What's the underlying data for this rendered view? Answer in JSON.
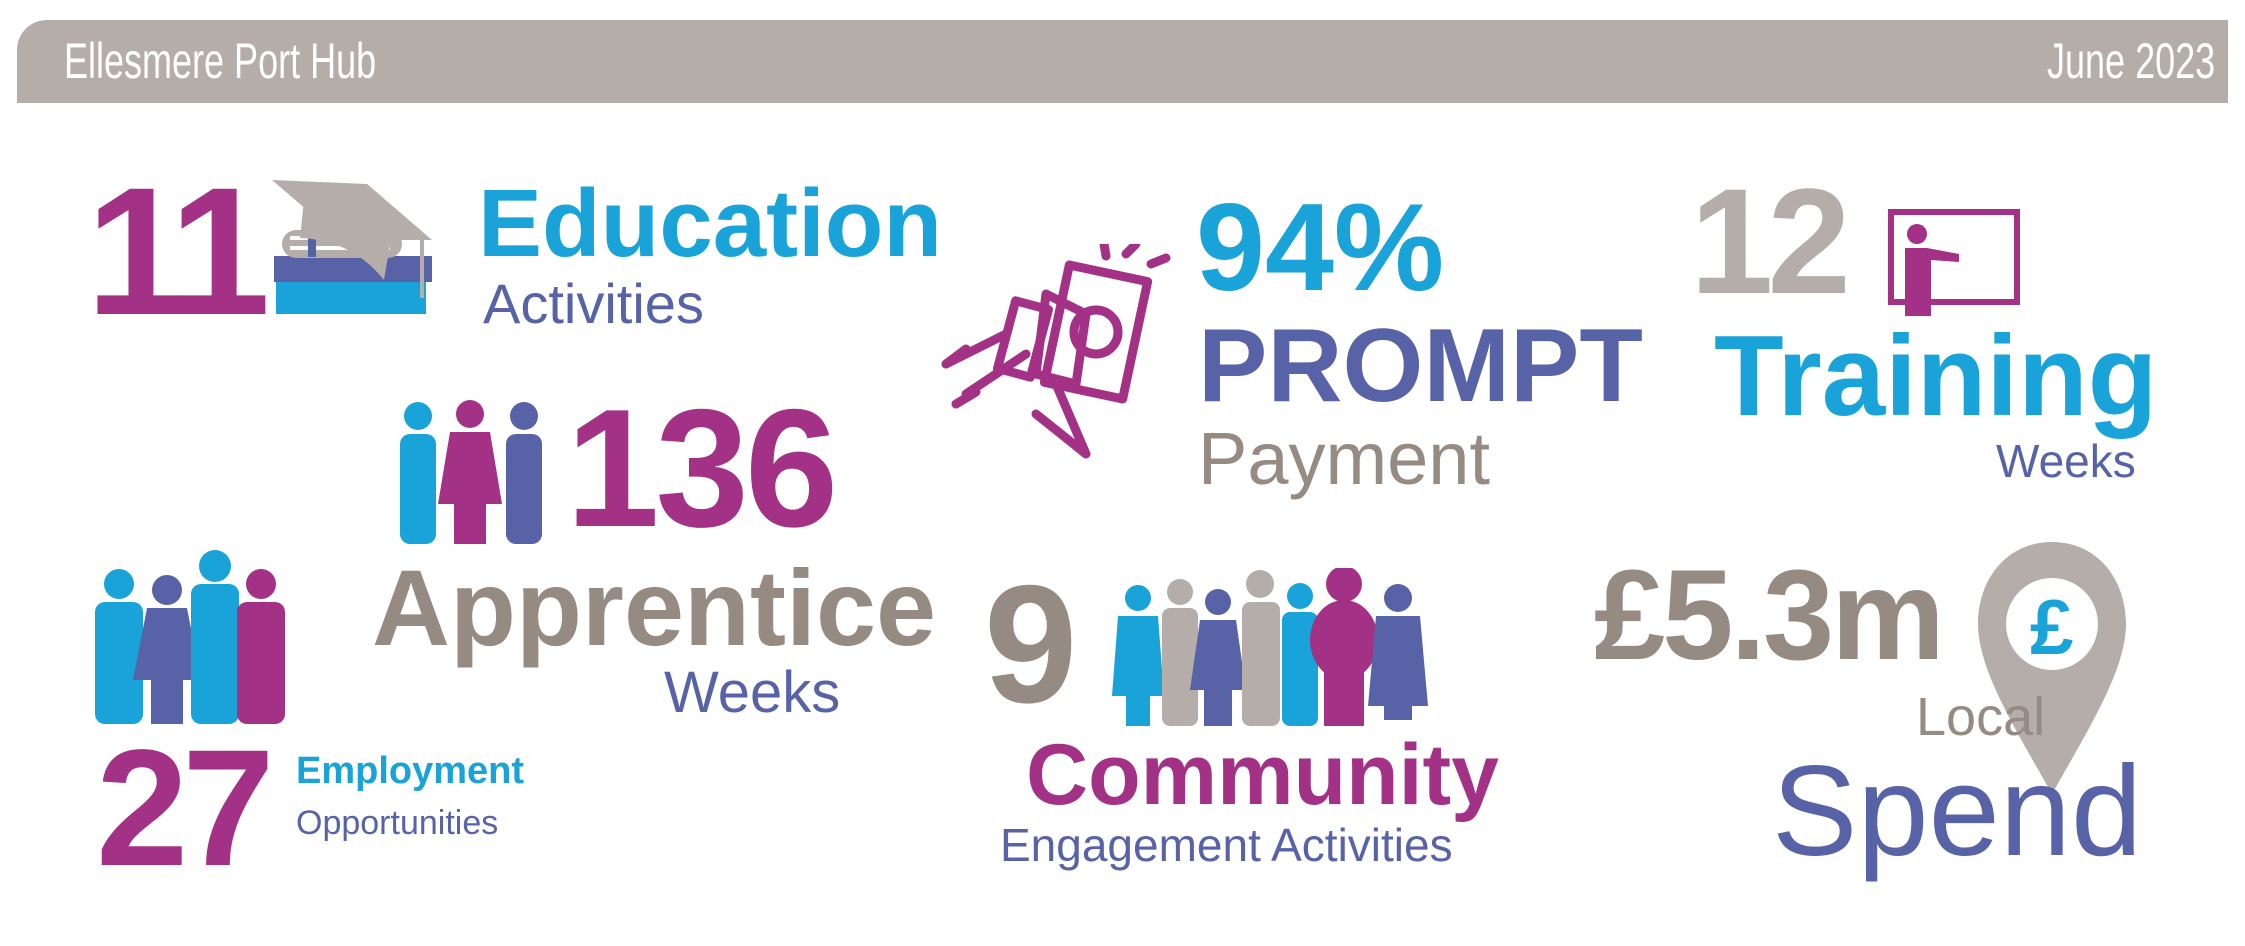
{
  "header": {
    "title": "Ellesmere Port Hub",
    "date": "June 2023"
  },
  "colors": {
    "purple": "#A33287",
    "blue": "#1AA3D9",
    "indigo": "#5763A6",
    "gray": "#958B82",
    "light_gray": "#B4ADAA"
  },
  "stats": {
    "education": {
      "value": "11",
      "label": "Education",
      "sublabel": "Activities",
      "icon": "graduation-books-icon"
    },
    "apprentice": {
      "value": "136",
      "label": "Apprentice",
      "sublabel": "Weeks",
      "icon": "people-group-icon"
    },
    "employment": {
      "value": "27",
      "label": "Employment",
      "sublabel": "Opportunities",
      "icon": "workers-icon"
    },
    "payment": {
      "value": "94%",
      "label": "PROMPT",
      "sublabel": "Payment",
      "icon": "hand-money-icon"
    },
    "training": {
      "value": "12",
      "label": "Training",
      "sublabel": "Weeks",
      "icon": "trainer-board-icon"
    },
    "community": {
      "value": "9",
      "label": "Community",
      "sublabel": "Engagement Activities",
      "icon": "community-people-icon"
    },
    "spend": {
      "value": "£5.3m",
      "label": "Local",
      "sublabel": "Spend",
      "icon": "pound-location-pin-icon",
      "pin_symbol": "£"
    }
  }
}
